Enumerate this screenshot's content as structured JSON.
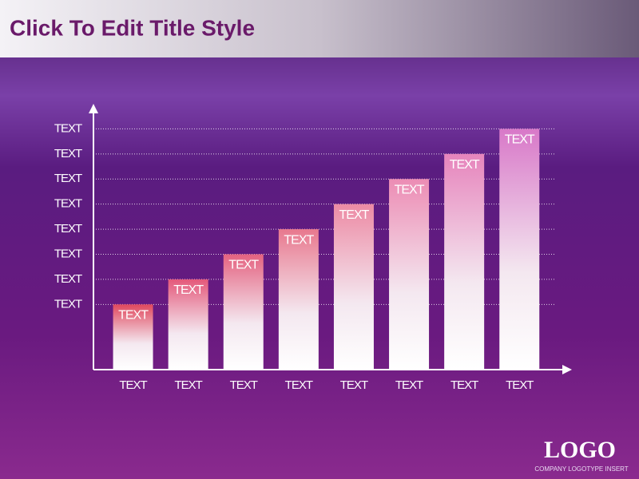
{
  "chart_data": {
    "type": "bar",
    "title": "Click To Edit Title Style",
    "categories": [
      "TEXT",
      "TEXT",
      "TEXT",
      "TEXT",
      "TEXT",
      "TEXT",
      "TEXT",
      "TEXT"
    ],
    "values": [
      2.6,
      3.6,
      4.6,
      5.6,
      6.6,
      7.6,
      8.6,
      9.6
    ],
    "value_labels": [
      "TEXT",
      "TEXT",
      "TEXT",
      "TEXT",
      "TEXT",
      "TEXT",
      "TEXT",
      "TEXT"
    ],
    "colors": [
      "#e0485e",
      "#e4587a",
      "#e46280",
      "#e8788e",
      "#ec8aa4",
      "#ec8cb4",
      "#e684bc",
      "#d878c8"
    ],
    "ylim": [
      0,
      10.6
    ],
    "yticks": [
      {
        "value": 2.6,
        "label": "TEXT"
      },
      {
        "value": 3.6,
        "label": "TEXT"
      },
      {
        "value": 4.6,
        "label": "TEXT"
      },
      {
        "value": 5.6,
        "label": "TEXT"
      },
      {
        "value": 6.6,
        "label": "TEXT"
      },
      {
        "value": 7.6,
        "label": "TEXT"
      },
      {
        "value": 8.6,
        "label": "TEXT"
      },
      {
        "value": 9.6,
        "label": "TEXT"
      }
    ],
    "grid": true
  },
  "footer": {
    "logo": "LOGO",
    "tagline": "COMPANY LOGOTYPE INSERT"
  }
}
